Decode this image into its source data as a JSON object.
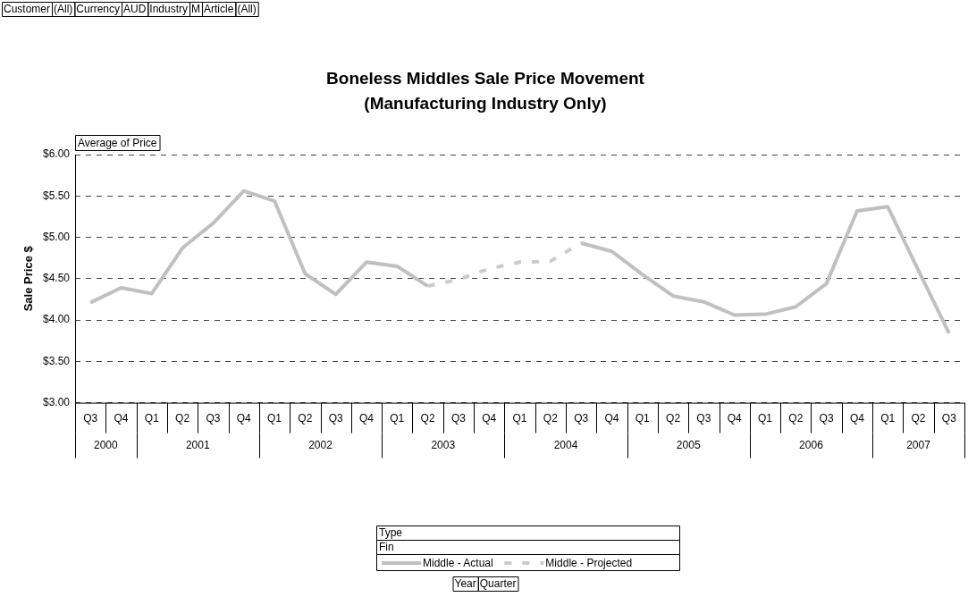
{
  "chart_data": {
    "type": "line",
    "title": "Boneless Middles Sale Price Movement",
    "subtitle": "(Manufacturing Industry Only)",
    "ylabel": "Sale Price $",
    "legend_title": "Type",
    "categories": [
      "Q3",
      "Q4",
      "Q1",
      "Q2",
      "Q3",
      "Q4",
      "Q1",
      "Q2",
      "Q3",
      "Q4",
      "Q1",
      "Q2",
      "Q3",
      "Q4",
      "Q1",
      "Q2",
      "Q3",
      "Q4",
      "Q1",
      "Q2",
      "Q3",
      "Q4",
      "Q1",
      "Q2",
      "Q3",
      "Q4",
      "Q1",
      "Q2",
      "Q3"
    ],
    "series": [
      {
        "name": "Middle - Actual",
        "color": "#c0c0c0",
        "line_style": "solid",
        "values": [
          4.21,
          4.39,
          4.32,
          4.87,
          5.17,
          5.56,
          5.44,
          4.56,
          4.31,
          4.7,
          4.65,
          4.41,
          null,
          null,
          null,
          null,
          4.93,
          4.83,
          4.55,
          4.29,
          4.22,
          4.06,
          4.07,
          4.16,
          4.44,
          5.32,
          5.37,
          4.6,
          3.84
        ]
      },
      {
        "name": "Middle - Projected",
        "color": "#cbcbcb",
        "line_style": "dashed",
        "values": [
          null,
          null,
          null,
          null,
          null,
          null,
          null,
          null,
          null,
          null,
          null,
          4.41,
          4.49,
          4.62,
          4.7,
          4.71,
          4.93,
          null,
          null,
          null,
          null,
          null,
          null,
          null,
          null,
          null,
          null,
          null,
          null
        ]
      }
    ],
    "ylim": [
      3,
      6
    ],
    "yticks": [
      {
        "value": 3,
        "label": "$3.00"
      },
      {
        "value": 3.5,
        "label": "$3.50"
      },
      {
        "value": 4,
        "label": "$4.00"
      },
      {
        "value": 4.5,
        "label": "$4.50"
      },
      {
        "value": 5,
        "label": "$5.00"
      },
      {
        "value": 5.5,
        "label": "$5.50"
      },
      {
        "value": 6,
        "label": "$6.00"
      }
    ],
    "grid": "y",
    "legend": "bottom",
    "marker": "none",
    "annotations": [
      "Customer",
      "(All)",
      "Currency",
      "AUD",
      "Industry",
      "M",
      "Article",
      "(All)",
      "Average of Price",
      "Fin",
      "Year",
      "Quarter",
      "2000",
      "2001",
      "2002",
      "2003",
      "2004",
      "2005",
      "2006",
      "2007"
    ]
  }
}
